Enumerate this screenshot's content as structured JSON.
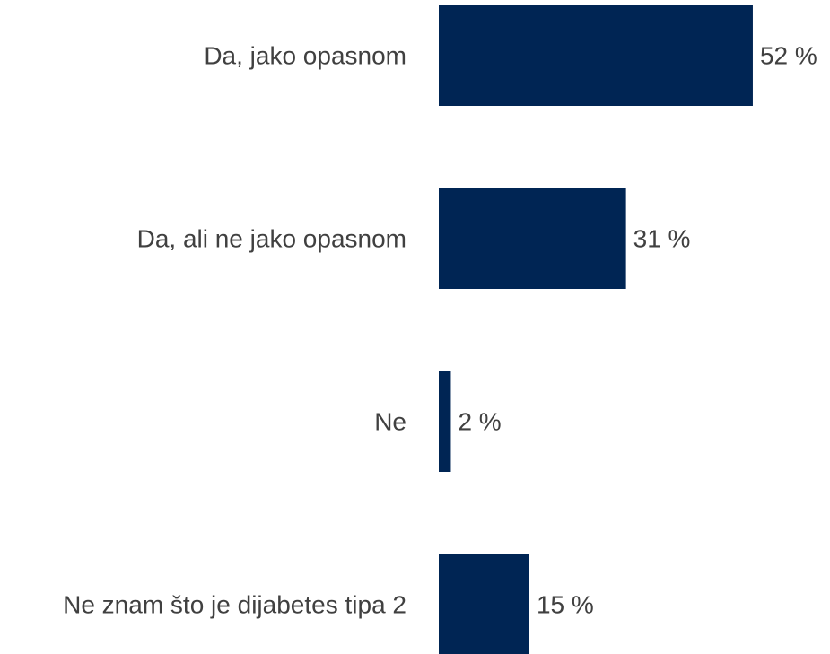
{
  "chart_data": {
    "type": "bar",
    "orientation": "horizontal",
    "title": "",
    "xlabel": "",
    "ylabel": "",
    "categories": [
      "Da, jako opasnom",
      "Da, ali ne jako opasnom",
      "Ne",
      "Ne znam što je dijabetes tipa 2"
    ],
    "values": [
      52,
      31,
      2,
      15
    ],
    "value_labels": [
      "52 %",
      "31 %",
      "2 %",
      "15 %"
    ],
    "unit": "%",
    "xlim": [
      0,
      100
    ],
    "grid": false,
    "legend": "none",
    "bar_color": "#002554",
    "text_color": "#404040"
  }
}
